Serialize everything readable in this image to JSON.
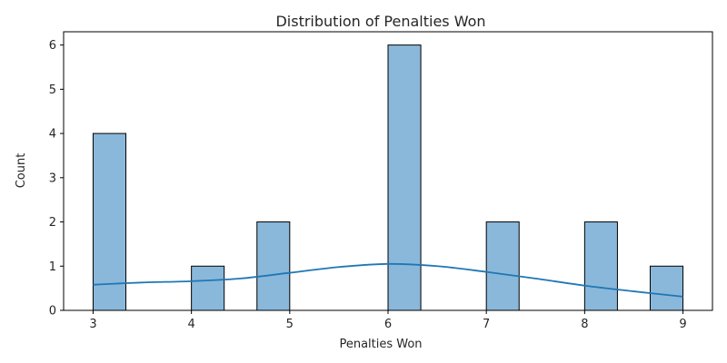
{
  "chart_data": {
    "type": "bar",
    "title": "Distribution of Penalties Won",
    "xlabel": "Penalties Won",
    "ylabel": "Count",
    "xlim": [
      2.7,
      9.3
    ],
    "ylim": [
      0,
      6.3
    ],
    "xticks": [
      3,
      4,
      5,
      6,
      7,
      8,
      9
    ],
    "yticks": [
      0,
      1,
      2,
      3,
      4,
      5,
      6
    ],
    "bin_width": 0.3333,
    "bins": [
      {
        "x0": 3.0,
        "count": 4
      },
      {
        "x0": 4.0,
        "count": 1
      },
      {
        "x0": 4.6667,
        "count": 2
      },
      {
        "x0": 6.0,
        "count": 6
      },
      {
        "x0": 7.0,
        "count": 2
      },
      {
        "x0": 8.0,
        "count": 2
      },
      {
        "x0": 8.6667,
        "count": 1
      }
    ],
    "kde": {
      "x": [
        3.0,
        3.5,
        4.0,
        4.5,
        5.0,
        5.5,
        6.0,
        6.5,
        7.0,
        7.5,
        8.0,
        8.5,
        9.0
      ],
      "y": [
        0.58,
        0.63,
        0.66,
        0.72,
        0.85,
        0.98,
        1.05,
        1.0,
        0.87,
        0.72,
        0.56,
        0.43,
        0.31
      ]
    },
    "colors": {
      "bar_fill": "#8ab8db",
      "bar_edge": "#000000",
      "kde_line": "#1f77b4"
    },
    "grid": false,
    "legend": "none"
  }
}
